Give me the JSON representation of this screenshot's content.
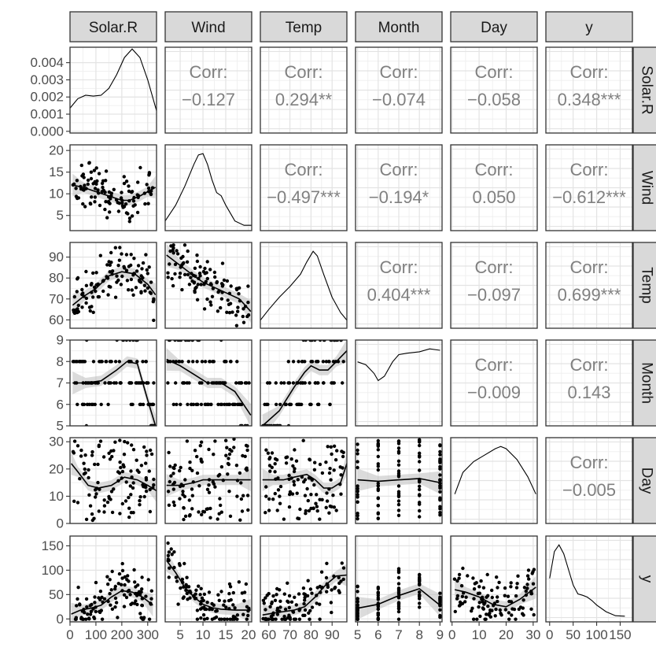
{
  "chart_data": {
    "type": "scatter_matrix",
    "variables": [
      "Solar.R",
      "Wind",
      "Temp",
      "Month",
      "Day",
      "y"
    ],
    "grid": true,
    "diagonal": "density",
    "lower": "scatter with loess smooth",
    "upper": "correlation",
    "corr_label": "Corr:",
    "correlations": [
      {
        "row": 0,
        "col": 1,
        "text": "−0.127"
      },
      {
        "row": 0,
        "col": 2,
        "text": "0.294**"
      },
      {
        "row": 0,
        "col": 3,
        "text": "−0.074"
      },
      {
        "row": 0,
        "col": 4,
        "text": "−0.058"
      },
      {
        "row": 0,
        "col": 5,
        "text": "0.348***"
      },
      {
        "row": 1,
        "col": 2,
        "text": "−0.497***"
      },
      {
        "row": 1,
        "col": 3,
        "text": "−0.194*"
      },
      {
        "row": 1,
        "col": 4,
        "text": "0.050"
      },
      {
        "row": 1,
        "col": 5,
        "text": "−0.612***"
      },
      {
        "row": 2,
        "col": 3,
        "text": "0.404***"
      },
      {
        "row": 2,
        "col": 4,
        "text": "−0.097"
      },
      {
        "row": 2,
        "col": 5,
        "text": "0.699***"
      },
      {
        "row": 3,
        "col": 4,
        "text": "−0.009"
      },
      {
        "row": 3,
        "col": 5,
        "text": "0.143"
      },
      {
        "row": 4,
        "col": 5,
        "text": "−0.005"
      }
    ],
    "x_axes": [
      {
        "var": "Solar.R",
        "range": [
          0,
          334
        ],
        "ticks": [
          0,
          100,
          200,
          300
        ],
        "labels": [
          "0",
          "100",
          "200",
          "300"
        ]
      },
      {
        "var": "Wind",
        "range": [
          1.7,
          20.7
        ],
        "ticks": [
          5,
          10,
          15,
          20
        ],
        "labels": [
          "5",
          "10",
          "15",
          "20"
        ]
      },
      {
        "var": "Temp",
        "range": [
          56,
          97
        ],
        "ticks": [
          60,
          70,
          80,
          90
        ],
        "labels": [
          "60",
          "70",
          "80",
          "90"
        ]
      },
      {
        "var": "Month",
        "range": [
          4.9,
          9.1
        ],
        "ticks": [
          5,
          6,
          7,
          8,
          9
        ],
        "labels": [
          "5",
          "6",
          "7",
          "8",
          "9"
        ]
      },
      {
        "var": "Day",
        "range": [
          -0.5,
          31.5
        ],
        "ticks": [
          0,
          10,
          20,
          30
        ],
        "labels": [
          "0",
          "10",
          "20",
          "30"
        ]
      },
      {
        "var": "y",
        "range": [
          -8,
          176
        ],
        "ticks": [
          0,
          50,
          100,
          150
        ],
        "labels": [
          "0",
          "50",
          "100",
          "150"
        ]
      }
    ],
    "y_axes": [
      {
        "var": "Solar.R",
        "range": [
          -0.0001,
          0.0049
        ],
        "ticks": [
          0,
          0.001,
          0.002,
          0.003,
          0.004
        ],
        "labels": [
          "0.000",
          "0.001",
          "0.002",
          "0.003",
          "0.004"
        ]
      },
      {
        "var": "Wind",
        "range": [
          1.5,
          21.3
        ],
        "ticks": [
          5,
          10,
          15,
          20
        ],
        "labels": [
          "5",
          "10",
          "15",
          "20"
        ]
      },
      {
        "var": "Temp",
        "range": [
          56,
          97
        ],
        "ticks": [
          60,
          70,
          80,
          90
        ],
        "labels": [
          "60",
          "70",
          "80",
          "90"
        ]
      },
      {
        "var": "Month",
        "range": [
          5,
          9
        ],
        "ticks": [
          5,
          6,
          7,
          8,
          9
        ],
        "labels": [
          "5",
          "6",
          "7",
          "8",
          "9"
        ]
      },
      {
        "var": "Day",
        "range": [
          0,
          31.5
        ],
        "ticks": [
          0,
          10,
          20,
          30
        ],
        "labels": [
          "0",
          "10",
          "20",
          "30"
        ]
      },
      {
        "var": "y",
        "range": [
          -6,
          170
        ],
        "ticks": [
          0,
          50,
          100,
          150
        ],
        "labels": [
          "0",
          "50",
          "100",
          "150"
        ]
      }
    ],
    "densities": [
      {
        "var": "Solar.R",
        "x": [
          0,
          30,
          60,
          90,
          120,
          150,
          180,
          210,
          240,
          270,
          300,
          334
        ],
        "y": [
          0.00135,
          0.0019,
          0.0021,
          0.00205,
          0.0021,
          0.0025,
          0.0033,
          0.0043,
          0.0048,
          0.0043,
          0.003,
          0.0012
        ]
      },
      {
        "var": "Wind",
        "x": [
          1.7,
          4,
          6,
          8,
          9,
          10,
          11,
          12,
          13,
          14,
          15,
          17,
          19,
          20.7
        ],
        "y": [
          0.01,
          0.035,
          0.065,
          0.1,
          0.115,
          0.117,
          0.1,
          0.075,
          0.055,
          0.05,
          0.035,
          0.01,
          0.003,
          0.003
        ]
      },
      {
        "var": "Temp",
        "x": [
          56,
          60,
          65,
          70,
          75,
          78,
          81,
          83,
          86,
          90,
          94,
          97
        ],
        "y": [
          0.003,
          0.01,
          0.018,
          0.025,
          0.033,
          0.041,
          0.048,
          0.045,
          0.033,
          0.018,
          0.008,
          0.003
        ]
      },
      {
        "var": "Month",
        "x": [
          5,
          5.4,
          5.8,
          6,
          6.3,
          6.7,
          7,
          7.4,
          8,
          8.5,
          9
        ],
        "y": [
          0.21,
          0.2,
          0.17,
          0.145,
          0.16,
          0.21,
          0.235,
          0.24,
          0.245,
          0.255,
          0.25
        ]
      },
      {
        "var": "Day",
        "x": [
          1,
          4,
          8,
          12,
          16,
          18,
          20,
          24,
          28,
          31
        ],
        "y": [
          0.012,
          0.022,
          0.027,
          0.03,
          0.033,
          0.034,
          0.033,
          0.028,
          0.02,
          0.012
        ]
      },
      {
        "var": "y",
        "x": [
          0,
          10,
          20,
          30,
          40,
          50,
          60,
          70,
          80,
          90,
          100,
          120,
          140,
          160
        ],
        "y": [
          0.009,
          0.015,
          0.0165,
          0.0145,
          0.011,
          0.0075,
          0.0055,
          0.0052,
          0.0048,
          0.004,
          0.003,
          0.0015,
          0.0006,
          0.0005
        ]
      }
    ],
    "smooths": [
      {
        "row": 1,
        "col": 0,
        "x": [
          10,
          50,
          100,
          150,
          200,
          230,
          270,
          300,
          330
        ],
        "y": [
          12,
          11.5,
          10.5,
          9.5,
          8.5,
          8.5,
          9.5,
          10.5,
          11.5
        ]
      },
      {
        "row": 2,
        "col": 0,
        "x": [
          10,
          50,
          100,
          150,
          200,
          250,
          300,
          330
        ],
        "y": [
          67,
          71,
          75,
          81,
          83,
          82,
          77,
          72
        ]
      },
      {
        "row": 2,
        "col": 1,
        "x": [
          2,
          5,
          8,
          10,
          12,
          15,
          18,
          20.5
        ],
        "y": [
          91,
          86,
          81,
          78,
          76,
          73,
          70,
          64
        ]
      },
      {
        "row": 3,
        "col": 0,
        "x": [
          10,
          60,
          120,
          180,
          220,
          260,
          300,
          330
        ],
        "y": [
          7,
          7,
          7.1,
          7.6,
          8,
          7.9,
          6.2,
          5
        ]
      },
      {
        "row": 3,
        "col": 1,
        "x": [
          2,
          5,
          8,
          11,
          14,
          17,
          20.5
        ],
        "y": [
          8.1,
          7.8,
          7.4,
          7,
          7,
          6.6,
          5.5
        ]
      },
      {
        "row": 3,
        "col": 2,
        "x": [
          57,
          65,
          72,
          77,
          80,
          84,
          88,
          92,
          97
        ],
        "y": [
          5,
          5.7,
          6.8,
          7.5,
          7.8,
          7.6,
          7.6,
          8,
          8.5
        ]
      },
      {
        "row": 4,
        "col": 0,
        "x": [
          5,
          30,
          70,
          110,
          160,
          210,
          260,
          300,
          334
        ],
        "y": [
          22,
          19,
          14,
          13,
          14,
          17,
          16,
          14,
          12
        ]
      },
      {
        "row": 4,
        "col": 1,
        "x": [
          2,
          5,
          8,
          10,
          12,
          15,
          18,
          20.5
        ],
        "y": [
          14,
          14,
          15,
          16,
          16,
          16,
          16,
          16
        ]
      },
      {
        "row": 4,
        "col": 2,
        "x": [
          57,
          62,
          67,
          72,
          78,
          82,
          86,
          90,
          94,
          97
        ],
        "y": [
          16,
          16,
          16,
          17,
          18,
          16,
          13,
          13,
          15,
          22
        ]
      },
      {
        "row": 4,
        "col": 3,
        "x": [
          5,
          6,
          7,
          8,
          9
        ],
        "y": [
          16,
          15.5,
          16,
          16.5,
          15
        ]
      },
      {
        "row": 5,
        "col": 0,
        "x": [
          5,
          40,
          80,
          120,
          160,
          200,
          240,
          280,
          320
        ],
        "y": [
          10,
          18,
          22,
          28,
          45,
          58,
          55,
          45,
          28
        ]
      },
      {
        "row": 5,
        "col": 1,
        "x": [
          2,
          4,
          6,
          8,
          10,
          12,
          14,
          17,
          20.5
        ],
        "y": [
          120,
          95,
          65,
          45,
          30,
          23,
          20,
          18,
          18
        ]
      },
      {
        "row": 5,
        "col": 2,
        "x": [
          57,
          62,
          67,
          72,
          77,
          82,
          87,
          92,
          97
        ],
        "y": [
          8,
          12,
          15,
          18,
          25,
          45,
          70,
          88,
          90
        ]
      },
      {
        "row": 5,
        "col": 3,
        "x": [
          5,
          6,
          7,
          8,
          9
        ],
        "y": [
          22,
          30,
          48,
          62,
          28
        ]
      },
      {
        "row": 5,
        "col": 4,
        "x": [
          1,
          5,
          10,
          15,
          20,
          25,
          31
        ],
        "y": [
          60,
          55,
          45,
          30,
          25,
          40,
          65
        ]
      }
    ]
  }
}
